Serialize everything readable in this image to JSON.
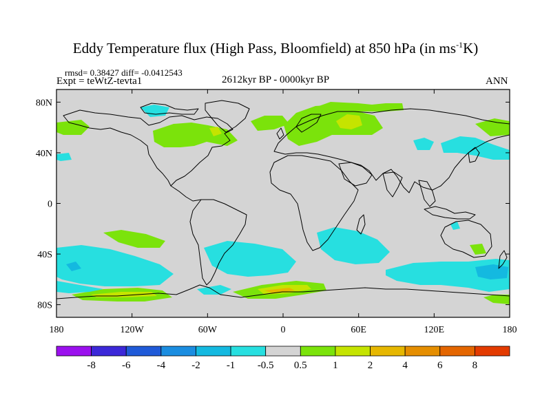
{
  "title": {
    "main": "Eddy Temperature flux (High Pass, Bloomfield) at 850 hPa (in ms",
    "sup": "-1",
    "tail": "K)"
  },
  "subtitle": {
    "stats": "rmsd= 0.38427 diff= -0.0412543",
    "experiment": "Expt = teWtZ-tevta1",
    "period": "2612kyr BP - 0000kyr BP",
    "season": "ANN"
  },
  "map": {
    "background_color": "#d4d4d4",
    "lon_range": [
      -180,
      180
    ],
    "lat_range": [
      -90,
      90
    ],
    "lon_ticks": [
      "180",
      "120W",
      "60W",
      "0",
      "60E",
      "120E",
      "180"
    ],
    "lat_ticks": [
      "80N",
      "40N",
      "0",
      "40S",
      "80S"
    ]
  },
  "colorbar": {
    "labels": [
      "-8",
      "-6",
      "-4",
      "-2",
      "-1",
      "-0.5",
      "0.5",
      "1",
      "2",
      "4",
      "6",
      "8"
    ],
    "colors": [
      "#9b10ee",
      "#3c28d8",
      "#1f5ad8",
      "#1b8de0",
      "#14b9e0",
      "#27dfe0",
      "#d4d4d4",
      "#7be30b",
      "#c5e400",
      "#e6b700",
      "#e58e00",
      "#e46600",
      "#e33b00"
    ]
  }
}
